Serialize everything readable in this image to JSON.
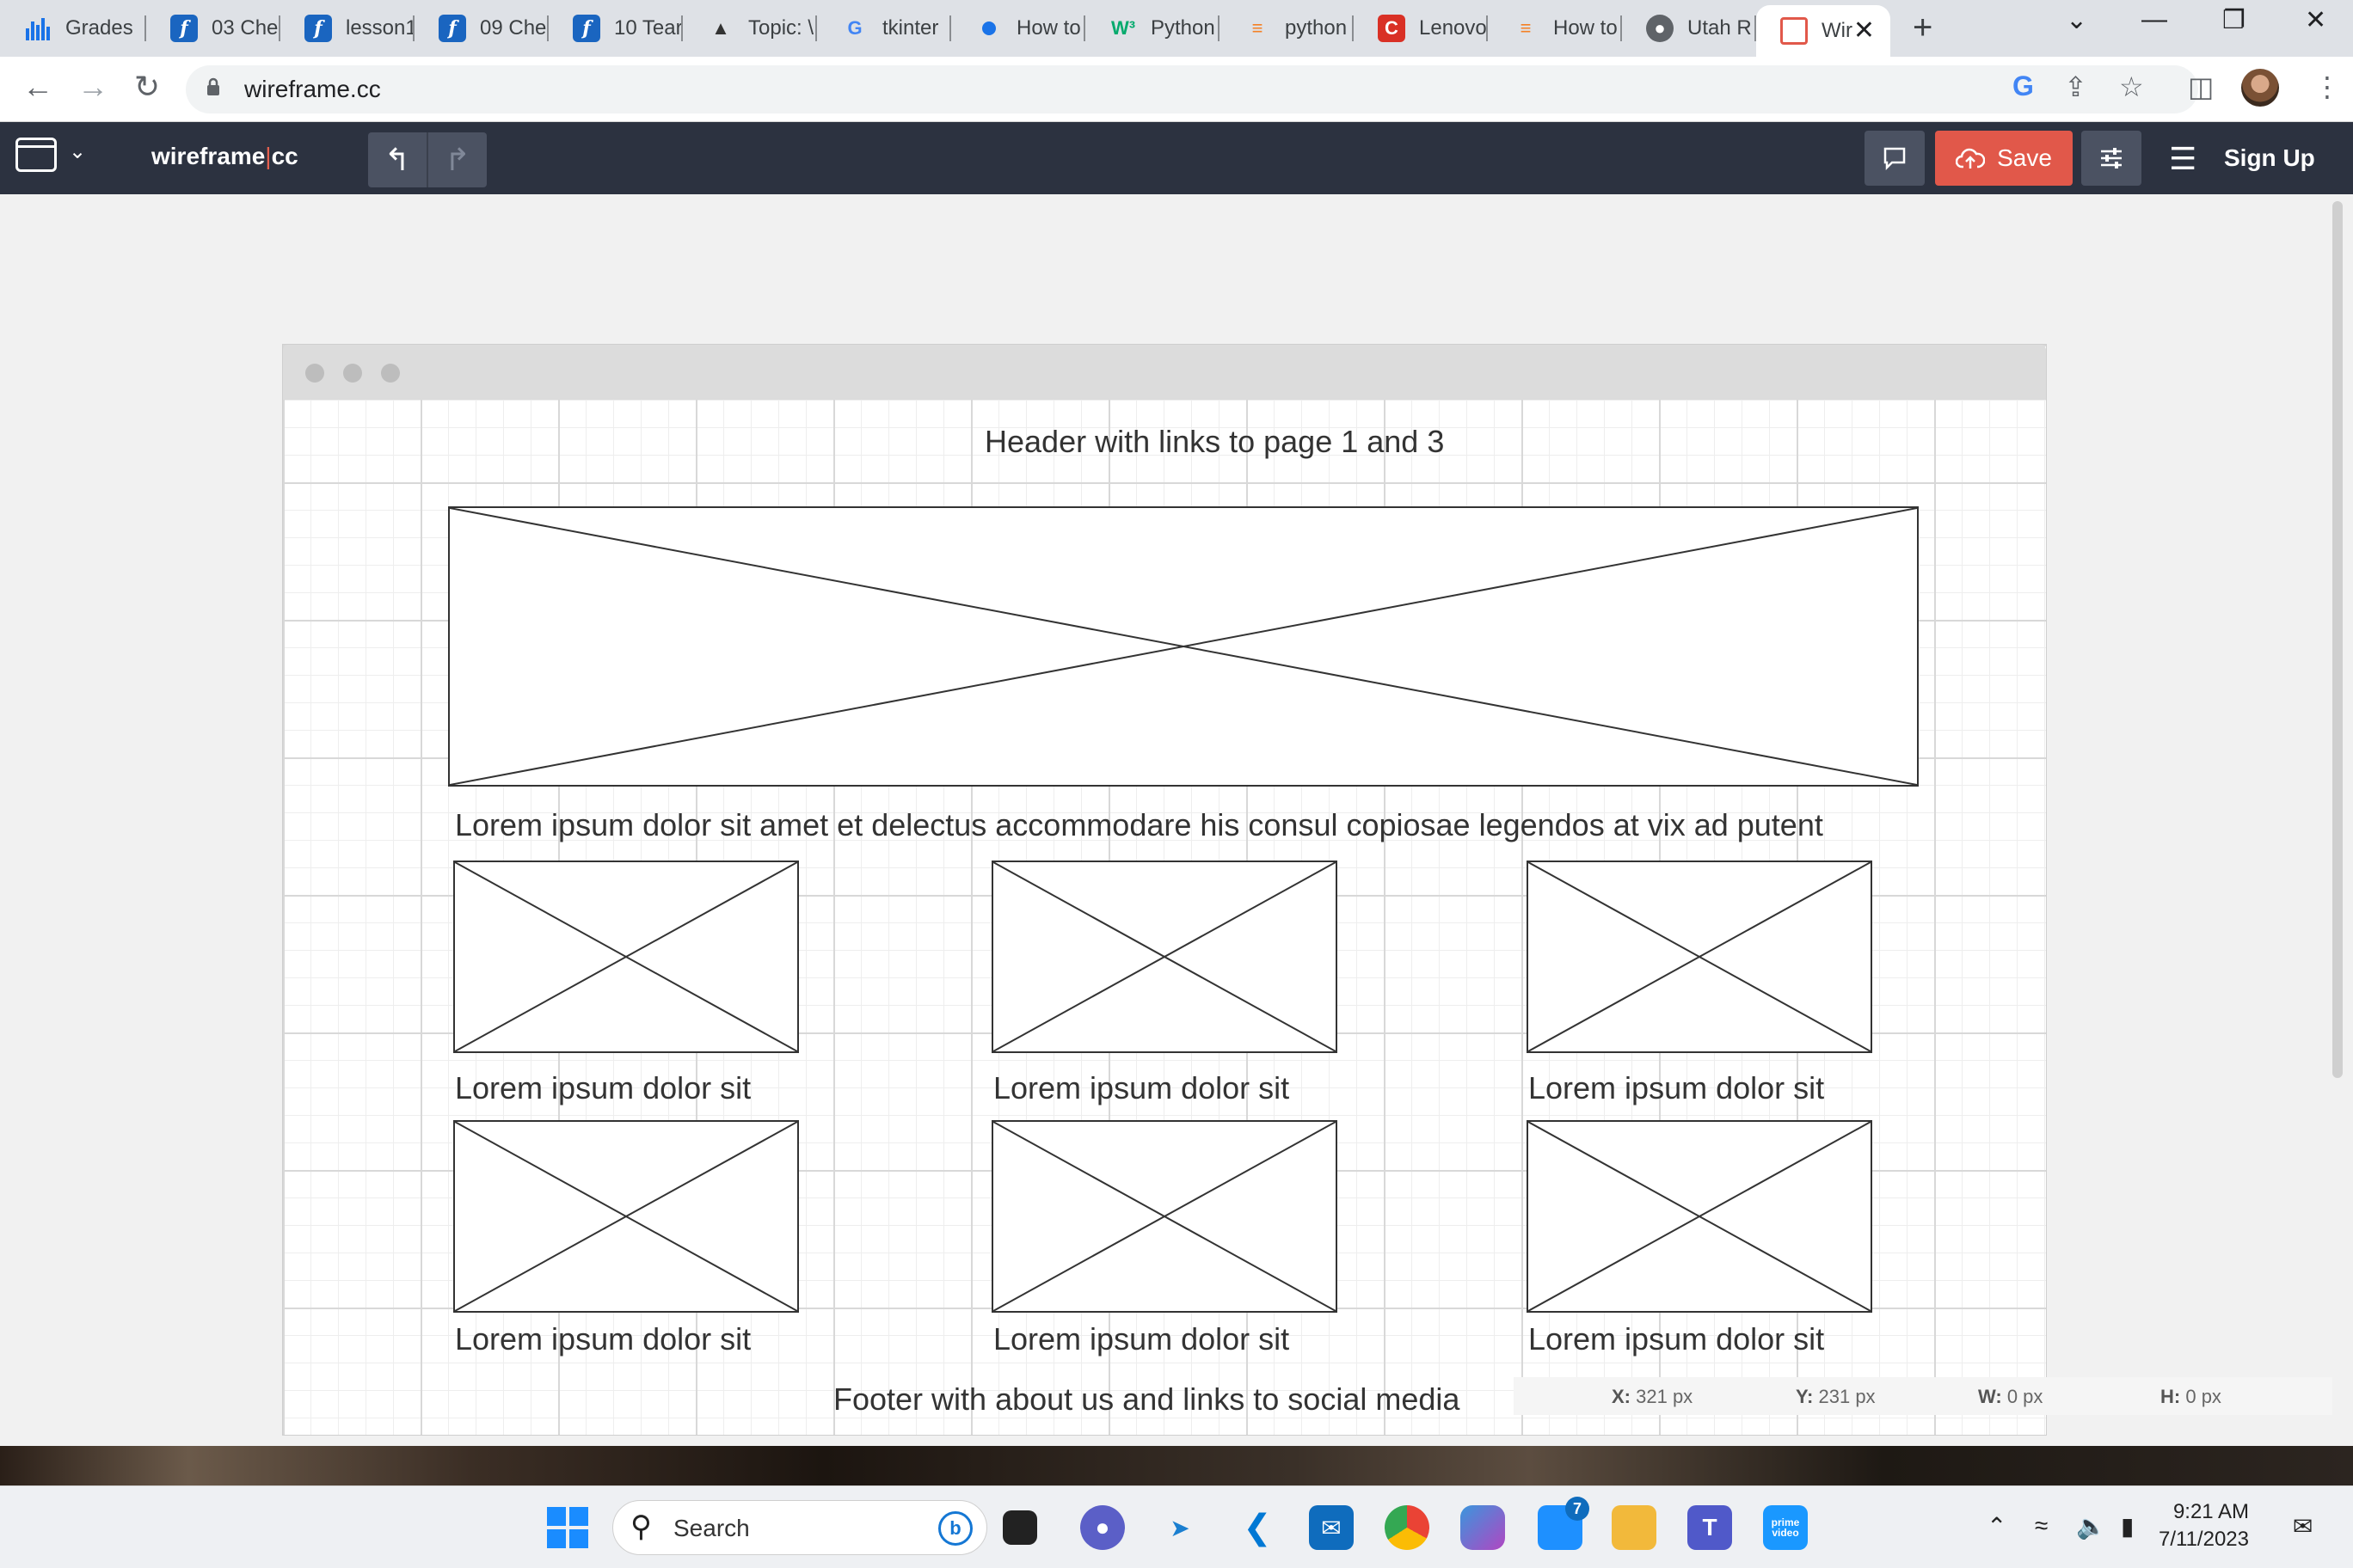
{
  "browser": {
    "tabs": [
      {
        "label": "Grades",
        "icon": "bar-chart-icon",
        "color": "#1a73e8"
      },
      {
        "label": "03 Che",
        "icon": "f-icon",
        "color": "#1a65c0"
      },
      {
        "label": "lesson1",
        "icon": "f-icon",
        "color": "#1a65c0"
      },
      {
        "label": "09 Che",
        "icon": "f-icon",
        "color": "#1a65c0"
      },
      {
        "label": "10 Tear",
        "icon": "f-icon",
        "color": "#1a65c0"
      },
      {
        "label": "Topic: \\",
        "icon": "book-icon",
        "color": "#333333"
      },
      {
        "label": "tkinter",
        "icon": "google-icon",
        "color": "#4285f4"
      },
      {
        "label": "How to",
        "icon": "dot-icon",
        "color": "#1a73e8"
      },
      {
        "label": "Python",
        "icon": "w3-icon",
        "color": "#04aa6d"
      },
      {
        "label": "python",
        "icon": "stack-icon",
        "color": "#f48024"
      },
      {
        "label": "Lenovo",
        "icon": "c-icon",
        "color": "#d93025"
      },
      {
        "label": "How to",
        "icon": "stack-icon",
        "color": "#f48024"
      },
      {
        "label": "Utah R",
        "icon": "globe-icon",
        "color": "#5f6368"
      },
      {
        "label": "Wir",
        "icon": "wireframe-icon",
        "color": "#e1584a"
      }
    ],
    "new_tab": "+",
    "url": "wireframe.cc"
  },
  "app": {
    "brand_left": "wireframe",
    "brand_sep": "|",
    "brand_right": "cc",
    "undo": "↰",
    "redo": "↱",
    "save_label": "Save",
    "signup_label": "Sign Up"
  },
  "wireframe": {
    "header_text": "Header with links to page 1 and 3",
    "intro_text": "Lorem ipsum dolor sit amet et delectus accommodare his consul copiosae legendos at vix ad putent",
    "grid": [
      {
        "caption": "Lorem ipsum dolor sit"
      },
      {
        "caption": "Lorem ipsum dolor sit"
      },
      {
        "caption": "Lorem ipsum dolor sit"
      },
      {
        "caption": "Lorem ipsum dolor sit"
      },
      {
        "caption": "Lorem ipsum dolor sit"
      },
      {
        "caption": "Lorem ipsum dolor sit"
      }
    ],
    "footer_text": "Footer with about us and links to social media"
  },
  "status": {
    "x_label": "X:",
    "x_value": "321 px",
    "y_label": "Y:",
    "y_value": "231 px",
    "w_label": "W:",
    "w_value": "0 px",
    "h_label": "H:",
    "h_value": "0 px"
  },
  "taskbar": {
    "search_placeholder": "Search",
    "teams_badge": "7",
    "prime_label": "prime video",
    "time": "9:21 AM",
    "date": "7/11/2023"
  }
}
